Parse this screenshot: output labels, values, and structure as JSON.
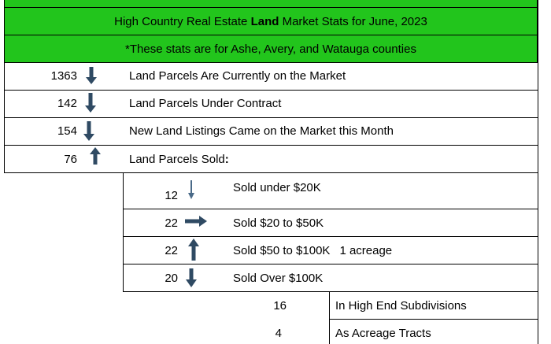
{
  "header": {
    "title_prefix": "High Country Real Estate ",
    "title_bold": "Land",
    "title_suffix": " Market Stats for June, 2023",
    "subtitle": "*These stats are for Ashe, Avery, and Watauga counties"
  },
  "colors": {
    "header_green": "#22c51c",
    "arrow": "#2f4a63"
  },
  "main_rows": [
    {
      "value": "1363",
      "trend": "down",
      "label": "Land Parcels Are Currently on the Market"
    },
    {
      "value": "142",
      "trend": "down",
      "label": "Land Parcels Under Contract"
    },
    {
      "value": "154",
      "trend": "down",
      "label": "New Land Listings Came on the Market this Month"
    },
    {
      "value": "76",
      "trend": "up",
      "label_prefix": "Land Parcels Sold",
      "label_bold": ":"
    }
  ],
  "sold_rows": [
    {
      "value": "12",
      "trend": "down-thin",
      "label": "Sold under $20K"
    },
    {
      "value": "22",
      "trend": "right",
      "label": "Sold $20 to $50K"
    },
    {
      "value": "22",
      "trend": "up",
      "label": "Sold $50 to $100K",
      "note": "1 acreage"
    },
    {
      "value": "20",
      "trend": "down",
      "label": "Sold Over $100K"
    }
  ],
  "over_100k_rows": [
    {
      "value": "16",
      "label": "In High End Subdivisions"
    },
    {
      "value": "4",
      "label": "As Acreage Tracts"
    }
  ]
}
